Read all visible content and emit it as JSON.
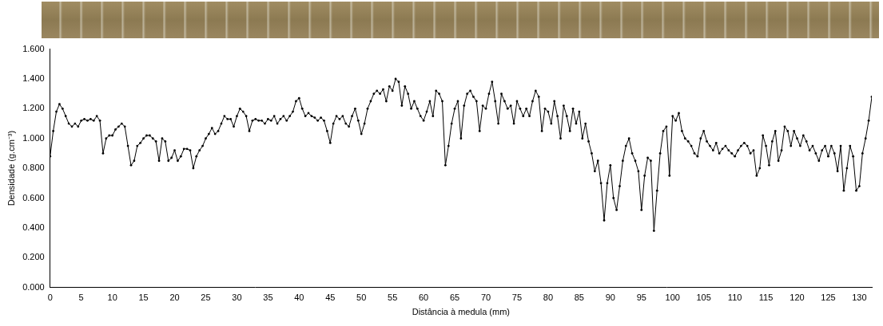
{
  "chart_data": {
    "type": "line",
    "x_label": "Distância à medula (mm)",
    "y_label": "Densidade (g.cm⁻³)",
    "color": "#000000",
    "marker": "circle",
    "line_style": "solid",
    "grid": false,
    "xlim": [
      0,
      132
    ],
    "xticks": [
      0,
      5,
      10,
      15,
      20,
      25,
      30,
      35,
      40,
      45,
      50,
      55,
      60,
      65,
      70,
      75,
      80,
      85,
      90,
      95,
      100,
      105,
      110,
      115,
      120,
      125,
      130
    ],
    "ylim": [
      0,
      1.6
    ],
    "yticks": [
      {
        "value": 0,
        "label": "0.000"
      },
      {
        "value": 0.2,
        "label": "0.200"
      },
      {
        "value": 0.4,
        "label": "0.400"
      },
      {
        "value": 0.6,
        "label": "0.600"
      },
      {
        "value": 0.8,
        "label": "0.800"
      },
      {
        "value": 1.0,
        "label": "1.000"
      },
      {
        "value": 1.2,
        "label": "1.200"
      },
      {
        "value": 1.4,
        "label": "1.400"
      },
      {
        "value": 1.6,
        "label": "1.600"
      }
    ],
    "x": [
      0,
      0.5,
      1,
      1.5,
      2,
      2.5,
      3,
      3.5,
      4,
      4.5,
      5,
      5.5,
      6,
      6.5,
      7,
      7.5,
      8,
      8.5,
      9,
      9.5,
      10,
      10.5,
      11,
      11.5,
      12,
      12.5,
      13,
      13.5,
      14,
      14.5,
      15,
      15.5,
      16,
      16.5,
      17,
      17.5,
      18,
      18.5,
      19,
      19.5,
      20,
      20.5,
      21,
      21.5,
      22,
      22.5,
      23,
      23.5,
      24,
      24.5,
      25,
      25.5,
      26,
      26.5,
      27,
      27.5,
      28,
      28.5,
      29,
      29.5,
      30,
      30.5,
      31,
      31.5,
      32,
      32.5,
      33,
      33.5,
      34,
      34.5,
      35,
      35.5,
      36,
      36.5,
      37,
      37.5,
      38,
      38.5,
      39,
      39.5,
      40,
      40.5,
      41,
      41.5,
      42,
      42.5,
      43,
      43.5,
      44,
      44.5,
      45,
      45.5,
      46,
      46.5,
      47,
      47.5,
      48,
      48.5,
      49,
      49.5,
      50,
      50.5,
      51,
      51.5,
      52,
      52.5,
      53,
      53.5,
      54,
      54.5,
      55,
      55.5,
      56,
      56.5,
      57,
      57.5,
      58,
      58.5,
      59,
      59.5,
      60,
      60.5,
      61,
      61.5,
      62,
      62.5,
      63,
      63.5,
      64,
      64.5,
      65,
      65.5,
      66,
      66.5,
      67,
      67.5,
      68,
      68.5,
      69,
      69.5,
      70,
      70.5,
      71,
      71.5,
      72,
      72.5,
      73,
      73.5,
      74,
      74.5,
      75,
      75.5,
      76,
      76.5,
      77,
      77.5,
      78,
      78.5,
      79,
      79.5,
      80,
      80.5,
      81,
      81.5,
      82,
      82.5,
      83,
      83.5,
      84,
      84.5,
      85,
      85.5,
      86,
      86.5,
      87,
      87.5,
      88,
      88.5,
      89,
      89.5,
      90,
      90.5,
      91,
      91.5,
      92,
      92.5,
      93,
      93.5,
      94,
      94.5,
      95,
      95.5,
      96,
      96.5,
      97,
      97.5,
      98,
      98.5,
      99,
      99.5,
      100,
      100.5,
      101,
      101.5,
      102,
      102.5,
      103,
      103.5,
      104,
      104.5,
      105,
      105.5,
      106,
      106.5,
      107,
      107.5,
      108,
      108.5,
      109,
      109.5,
      110,
      110.5,
      111,
      111.5,
      112,
      112.5,
      113,
      113.5,
      114,
      114.5,
      115,
      115.5,
      116,
      116.5,
      117,
      117.5,
      118,
      118.5,
      119,
      119.5,
      120,
      120.5,
      121,
      121.5,
      122,
      122.5,
      123,
      123.5,
      124,
      124.5,
      125,
      125.5,
      126,
      126.5,
      127,
      127.5,
      128,
      128.5,
      129,
      129.5,
      130,
      130.5,
      131,
      131.5,
      132
    ],
    "values": [
      0.88,
      1.05,
      1.18,
      1.23,
      1.2,
      1.15,
      1.1,
      1.08,
      1.1,
      1.08,
      1.12,
      1.13,
      1.12,
      1.13,
      1.12,
      1.15,
      1.12,
      0.9,
      1.0,
      1.02,
      1.02,
      1.06,
      1.08,
      1.1,
      1.08,
      0.95,
      0.82,
      0.85,
      0.95,
      0.97,
      1.0,
      1.02,
      1.02,
      1.0,
      0.98,
      0.85,
      1.0,
      0.98,
      0.85,
      0.87,
      0.92,
      0.85,
      0.88,
      0.93,
      0.93,
      0.92,
      0.8,
      0.88,
      0.92,
      0.95,
      1.0,
      1.03,
      1.07,
      1.03,
      1.05,
      1.1,
      1.15,
      1.13,
      1.13,
      1.08,
      1.15,
      1.2,
      1.18,
      1.15,
      1.05,
      1.12,
      1.13,
      1.12,
      1.12,
      1.1,
      1.13,
      1.12,
      1.15,
      1.1,
      1.13,
      1.15,
      1.12,
      1.15,
      1.18,
      1.25,
      1.27,
      1.2,
      1.15,
      1.17,
      1.15,
      1.14,
      1.12,
      1.14,
      1.12,
      1.05,
      0.97,
      1.1,
      1.15,
      1.13,
      1.15,
      1.1,
      1.08,
      1.15,
      1.2,
      1.12,
      1.03,
      1.1,
      1.2,
      1.25,
      1.3,
      1.32,
      1.3,
      1.33,
      1.25,
      1.35,
      1.32,
      1.4,
      1.38,
      1.22,
      1.35,
      1.3,
      1.2,
      1.25,
      1.2,
      1.15,
      1.12,
      1.18,
      1.25,
      1.15,
      1.32,
      1.3,
      1.25,
      0.82,
      0.95,
      1.1,
      1.2,
      1.25,
      1.0,
      1.22,
      1.3,
      1.32,
      1.28,
      1.25,
      1.05,
      1.22,
      1.2,
      1.3,
      1.38,
      1.25,
      1.1,
      1.3,
      1.25,
      1.2,
      1.22,
      1.1,
      1.25,
      1.2,
      1.15,
      1.2,
      1.15,
      1.25,
      1.32,
      1.28,
      1.05,
      1.2,
      1.18,
      1.1,
      1.25,
      1.15,
      1.0,
      1.22,
      1.15,
      1.05,
      1.2,
      1.1,
      1.18,
      1.0,
      1.1,
      0.98,
      0.9,
      0.78,
      0.85,
      0.7,
      0.45,
      0.7,
      0.82,
      0.6,
      0.52,
      0.68,
      0.85,
      0.95,
      1.0,
      0.9,
      0.85,
      0.78,
      0.52,
      0.75,
      0.87,
      0.85,
      0.38,
      0.65,
      0.9,
      1.05,
      1.08,
      0.75,
      1.15,
      1.12,
      1.17,
      1.05,
      1.0,
      0.98,
      0.95,
      0.9,
      0.88,
      1.0,
      1.05,
      0.98,
      0.95,
      0.92,
      0.97,
      0.9,
      0.93,
      0.95,
      0.92,
      0.9,
      0.88,
      0.92,
      0.95,
      0.97,
      0.95,
      0.9,
      0.92,
      0.75,
      0.8,
      1.02,
      0.95,
      0.82,
      0.98,
      1.05,
      0.85,
      0.92,
      1.08,
      1.05,
      0.95,
      1.05,
      1.0,
      0.95,
      1.02,
      0.98,
      0.92,
      0.95,
      0.9,
      0.85,
      0.92,
      0.95,
      0.88,
      0.95,
      0.9,
      0.78,
      0.95,
      0.65,
      0.8,
      0.95,
      0.88,
      0.65,
      0.68,
      0.9,
      1.0,
      1.12,
      1.28
    ]
  }
}
